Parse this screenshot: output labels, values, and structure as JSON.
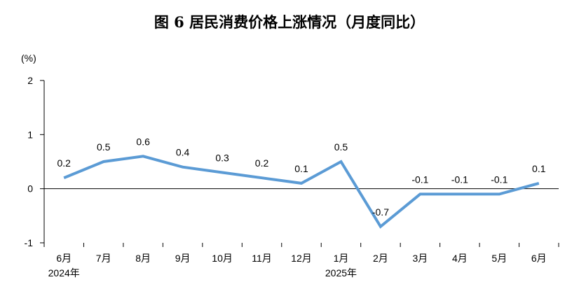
{
  "chart_data": {
    "type": "line",
    "title": "图 6   居民消费价格上涨情况（月度同比）",
    "y_unit": "(%)",
    "ylim": [
      -1,
      2
    ],
    "y_ticks": [
      -1,
      0,
      1,
      2
    ],
    "categories": [
      "6月",
      "7月",
      "8月",
      "9月",
      "10月",
      "11月",
      "12月",
      "1月",
      "2月",
      "3月",
      "4月",
      "5月",
      "6月"
    ],
    "year_labels": [
      {
        "index": 0,
        "label": "2024年"
      },
      {
        "index": 7,
        "label": "2025年"
      }
    ],
    "series": [
      {
        "values": [
          0.2,
          0.5,
          0.6,
          0.4,
          0.3,
          0.2,
          0.1,
          0.5,
          -0.7,
          -0.1,
          -0.1,
          -0.1,
          0.1
        ]
      }
    ],
    "data_labels": [
      "0.2",
      "0.5",
      "0.6",
      "0.4",
      "0.3",
      "0.2",
      "0.1",
      "0.5",
      "-0.7",
      "-0.1",
      "-0.1",
      "-0.1",
      "0.1"
    ],
    "line_color": "#5B9BD5",
    "grid": false
  }
}
